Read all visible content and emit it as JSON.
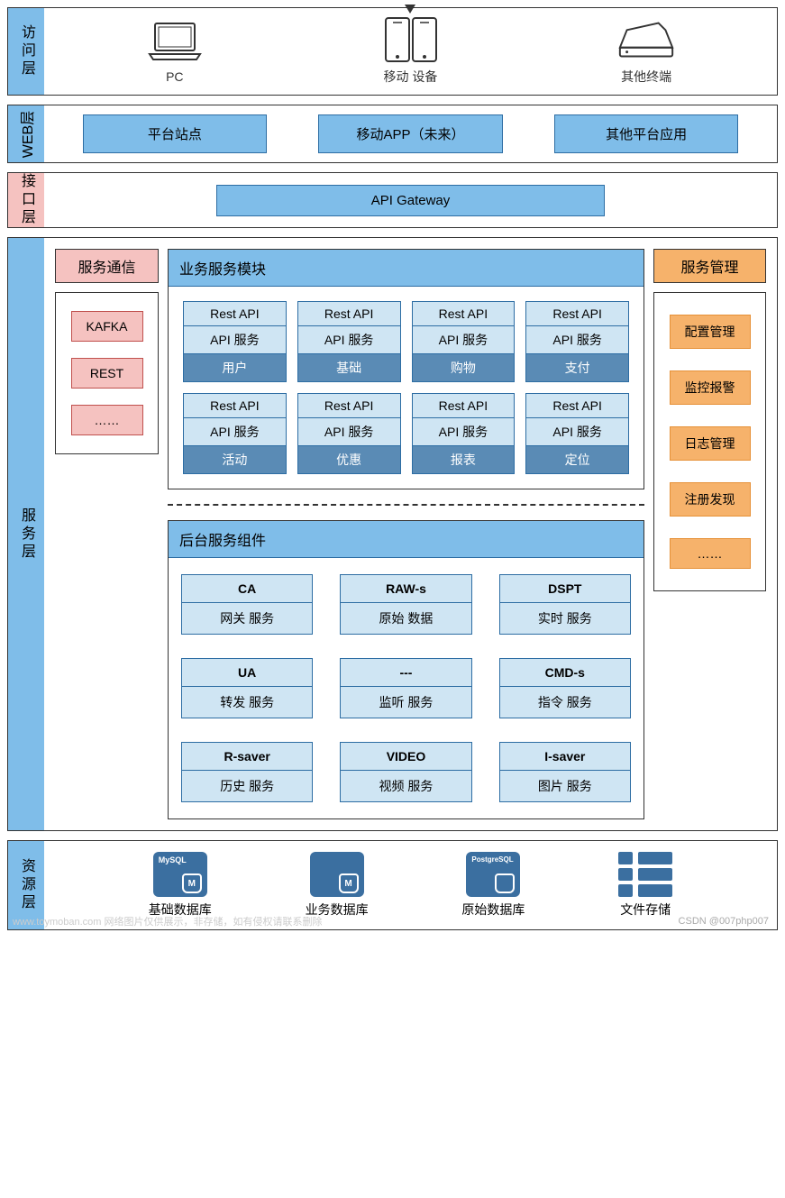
{
  "colors": {
    "layer_blue": "#7fbde9",
    "layer_pink": "#f5c2c0",
    "module_light": "#cfe5f3",
    "module_dark": "#5a8bb5",
    "orange": "#f6b26b",
    "db_blue": "#3b6fa0",
    "border_blue": "#2d6da3",
    "border_dark": "#333333"
  },
  "layers": {
    "access": {
      "label": "访问层",
      "color": "#7fbde9",
      "items": [
        {
          "name": "PC"
        },
        {
          "name": "移动 设备"
        },
        {
          "name": "其他终端"
        }
      ]
    },
    "web": {
      "label": "WEB层",
      "color": "#7fbde9",
      "buttons": [
        "平台站点",
        "移动APP（未来）",
        "其他平台应用"
      ]
    },
    "api": {
      "label": "接口层",
      "color": "#f5c2c0",
      "gateway": "API Gateway"
    },
    "service": {
      "label": "服务层",
      "color": "#7fbde9",
      "comm": {
        "title": "服务通信",
        "header_color": "#f5c2c0",
        "items": [
          "KAFKA",
          "REST",
          "……"
        ]
      },
      "biz": {
        "title": "业务服务模块",
        "row_labels": [
          "Rest API",
          "API 服务"
        ],
        "modules": [
          "用户",
          "基础",
          "购物",
          "支付",
          "活动",
          "优惠",
          "报表",
          "定位"
        ]
      },
      "backend": {
        "title": "后台服务组件",
        "items": [
          {
            "code": "CA",
            "desc": "网关 服务"
          },
          {
            "code": "RAW-s",
            "desc": "原始 数据"
          },
          {
            "code": "DSPT",
            "desc": "实时 服务"
          },
          {
            "code": "UA",
            "desc": "转发 服务"
          },
          {
            "code": "---",
            "desc": "监听 服务"
          },
          {
            "code": "CMD-s",
            "desc": "指令 服务"
          },
          {
            "code": "R-saver",
            "desc": "历史 服务"
          },
          {
            "code": "VIDEO",
            "desc": "视频 服务"
          },
          {
            "code": "I-saver",
            "desc": "图片 服务"
          }
        ]
      },
      "mgmt": {
        "title": "服务管理",
        "header_color": "#f6b26b",
        "items": [
          "配置管理",
          "监控报警",
          "日志管理",
          "注册发现",
          "……"
        ]
      }
    },
    "resource": {
      "label": "资源层",
      "color": "#7fbde9",
      "items": [
        {
          "icon": "MySQL",
          "label": "基础数据库"
        },
        {
          "icon": "",
          "label": "业务数据库"
        },
        {
          "icon": "PostgreSQL",
          "label": "原始数据库"
        },
        {
          "icon": "files",
          "label": "文件存储"
        }
      ]
    }
  },
  "watermark_right": "CSDN @007php007",
  "watermark_left": "www.toymoban.com 网络图片仅供展示，非存储，如有侵权请联系删除"
}
